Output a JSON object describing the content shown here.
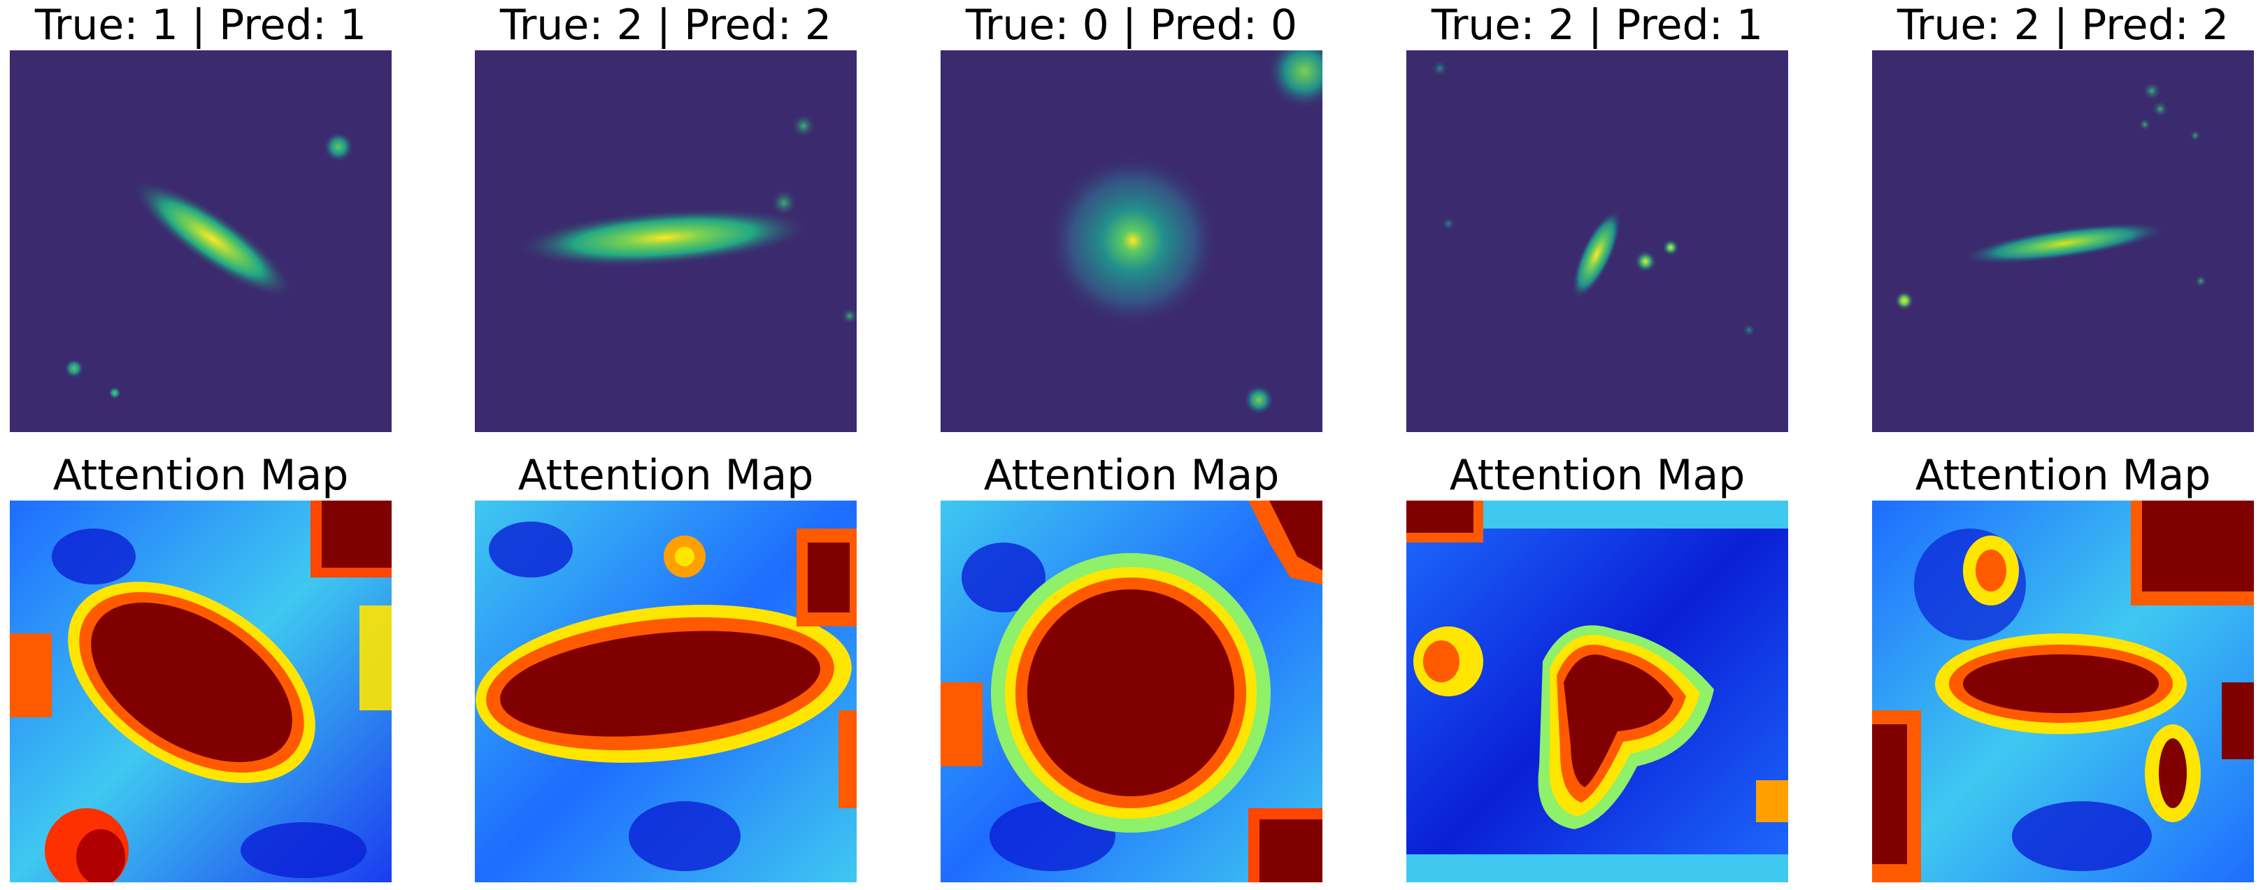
{
  "panels": [
    {
      "title": "True: 1 | Pred: 1",
      "attention_title": "Attention Map"
    },
    {
      "title": "True: 2 | Pred: 2",
      "attention_title": "Attention Map"
    },
    {
      "title": "True: 0 | Pred: 0",
      "attention_title": "Attention Map"
    },
    {
      "title": "True: 2 | Pred: 1",
      "attention_title": "Attention Map"
    },
    {
      "title": "True: 2 | Pred: 2",
      "attention_title": "Attention Map"
    }
  ],
  "colors": {
    "galaxy_background": "#3b2a6e",
    "galaxy_halo": "#2a8a8c",
    "galaxy_core": "#fde725",
    "attention_low": "#0a1fd6",
    "attention_mid": "#3fc8f0",
    "attention_high": "#800000"
  },
  "colormaps": {
    "galaxy": "viridis",
    "attention": "jet"
  }
}
